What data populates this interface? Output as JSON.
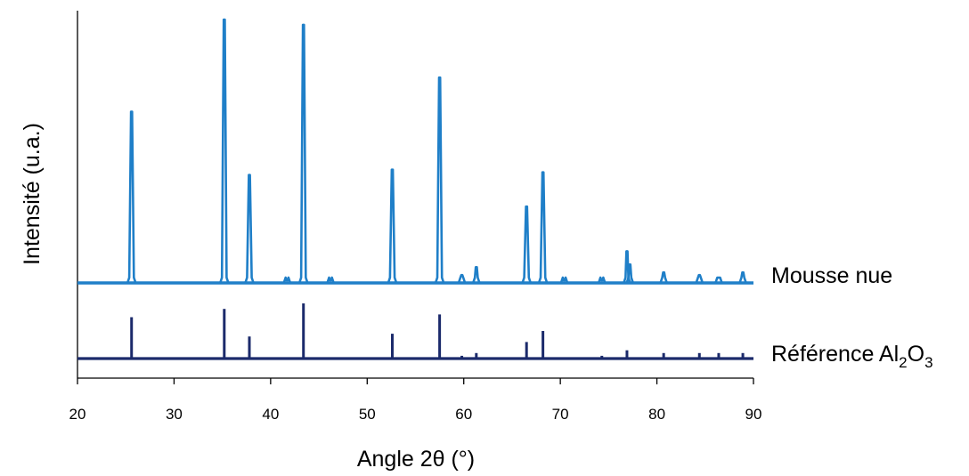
{
  "chart_data": {
    "type": "line",
    "xlabel": "Angle 2θ (°)",
    "ylabel": "Intensité (u.a.)",
    "xlim": [
      20,
      90
    ],
    "xticks": [
      "20",
      "30",
      "40",
      "50",
      "60",
      "70",
      "80",
      "90"
    ],
    "grid": false,
    "series": [
      {
        "name": "Mousse nue",
        "color": "#1f7fc8",
        "baseline": 0,
        "peaks": [
          {
            "x": 25.6,
            "y": 65
          },
          {
            "x": 35.2,
            "y": 100
          },
          {
            "x": 37.8,
            "y": 41
          },
          {
            "x": 41.7,
            "y": 1
          },
          {
            "x": 43.4,
            "y": 98
          },
          {
            "x": 46.2,
            "y": 1
          },
          {
            "x": 52.6,
            "y": 43
          },
          {
            "x": 57.5,
            "y": 78
          },
          {
            "x": 59.8,
            "y": 3
          },
          {
            "x": 61.3,
            "y": 6
          },
          {
            "x": 66.5,
            "y": 29
          },
          {
            "x": 68.2,
            "y": 42
          },
          {
            "x": 70.4,
            "y": 1
          },
          {
            "x": 74.3,
            "y": 1
          },
          {
            "x": 76.9,
            "y": 12
          },
          {
            "x": 77.2,
            "y": 7
          },
          {
            "x": 80.7,
            "y": 4
          },
          {
            "x": 84.4,
            "y": 3
          },
          {
            "x": 86.4,
            "y": 2
          },
          {
            "x": 88.9,
            "y": 4
          }
        ],
        "label": "Mousse nue"
      },
      {
        "name": "Référence Al2O3",
        "color": "#1b2a6b",
        "baseline": 0,
        "peaks": [
          {
            "x": 25.6,
            "y": 15
          },
          {
            "x": 35.2,
            "y": 18
          },
          {
            "x": 37.8,
            "y": 8
          },
          {
            "x": 43.4,
            "y": 20
          },
          {
            "x": 52.6,
            "y": 9
          },
          {
            "x": 57.5,
            "y": 16
          },
          {
            "x": 59.8,
            "y": 1
          },
          {
            "x": 61.3,
            "y": 2
          },
          {
            "x": 66.5,
            "y": 6
          },
          {
            "x": 68.2,
            "y": 10
          },
          {
            "x": 74.3,
            "y": 1
          },
          {
            "x": 76.9,
            "y": 3
          },
          {
            "x": 80.7,
            "y": 2
          },
          {
            "x": 84.4,
            "y": 2
          },
          {
            "x": 86.4,
            "y": 2
          },
          {
            "x": 88.9,
            "y": 2
          }
        ],
        "label_main": "Référence Al",
        "label_sub1": "2",
        "label_mid": "O",
        "label_sub2": "3"
      }
    ]
  }
}
